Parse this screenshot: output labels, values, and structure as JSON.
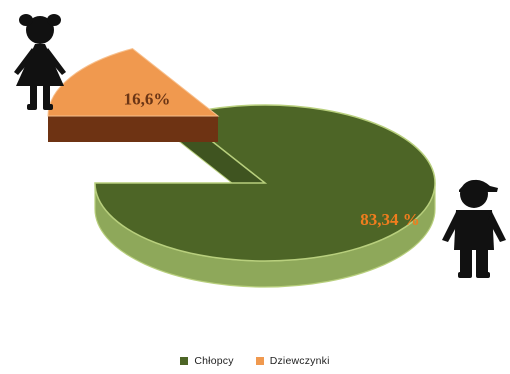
{
  "chart_data": {
    "type": "pie",
    "series": [
      {
        "name": "Chłopcy",
        "value": 83.34,
        "label": "83,34 %",
        "color": "#4d6526"
      },
      {
        "name": "Dziewczynki",
        "value": 16.6,
        "label": "16,6%",
        "color": "#f0994f"
      }
    ],
    "legend_position": "bottom"
  },
  "colors": {
    "boys_side": "#8ea85a",
    "girls_side": "#6e3313",
    "label": "#f07d1e"
  },
  "icons": {
    "girl": "girl-silhouette-icon",
    "boy": "boy-with-cap-icon"
  }
}
